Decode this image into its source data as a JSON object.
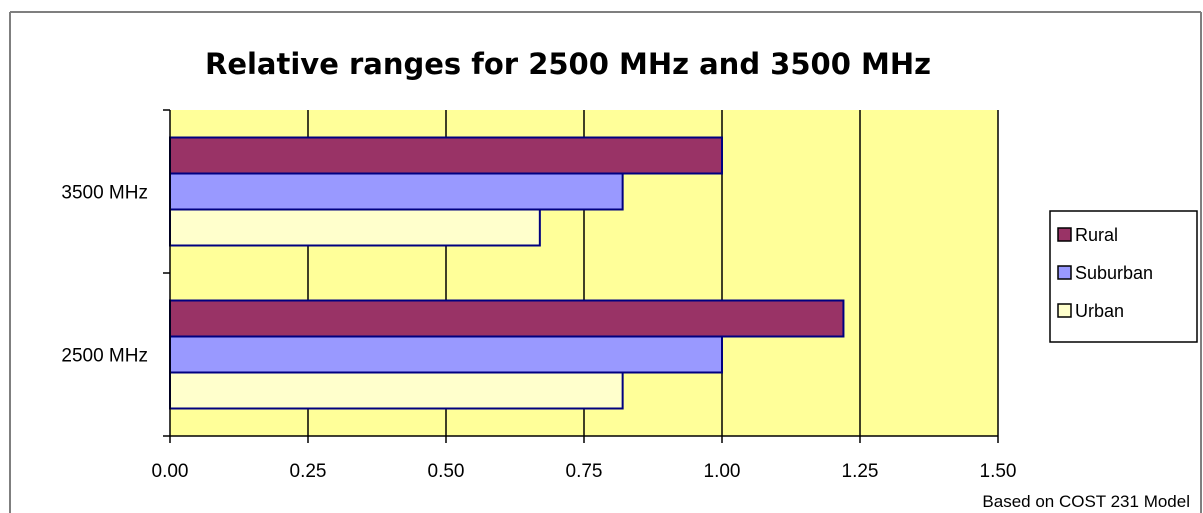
{
  "chart_data": {
    "type": "bar",
    "orientation": "horizontal",
    "title": "Relative ranges for 2500 MHz and 3500 MHz",
    "categories": [
      "3500 MHz",
      "2500 MHz"
    ],
    "series": [
      {
        "name": "Rural",
        "values": [
          1.0,
          1.22
        ],
        "color": "#993366"
      },
      {
        "name": "Suburban",
        "values": [
          0.82,
          1.0
        ],
        "color": "#9999ff"
      },
      {
        "name": "Urban",
        "values": [
          0.67,
          0.82
        ],
        "color": "#ffffcc"
      }
    ],
    "xlim": [
      0,
      1.5
    ],
    "x_ticks": [
      "0.00",
      "0.25",
      "0.50",
      "0.75",
      "1.00",
      "1.25",
      "1.50"
    ],
    "grid": "vertical",
    "plot_background": "#ffff99",
    "legend_position": "right",
    "note": "Based on COST 231  Model"
  }
}
